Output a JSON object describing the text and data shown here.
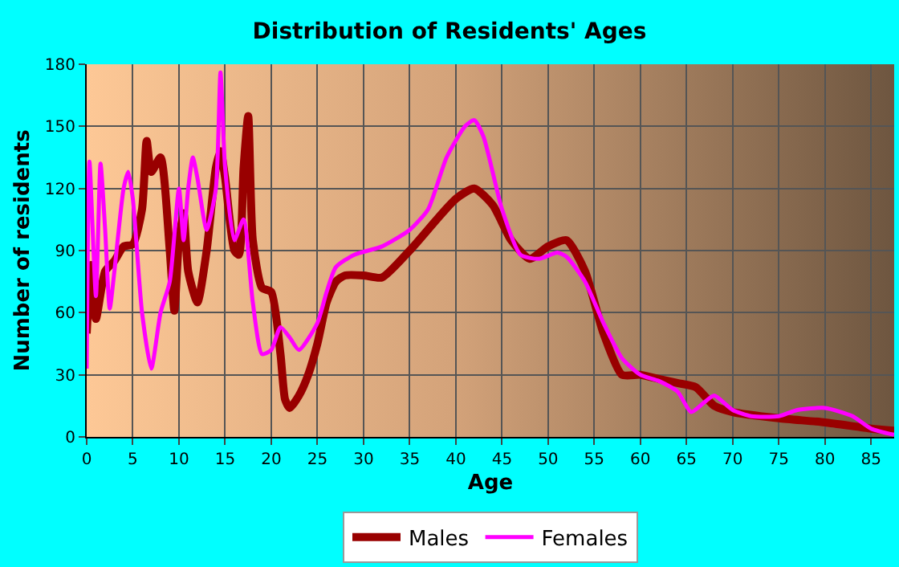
{
  "chart_data": {
    "type": "line",
    "title": "Distribution of Residents' Ages",
    "xlabel": "Age",
    "ylabel": "Number of residents",
    "xlim": [
      0,
      87.5
    ],
    "xticks": [
      0,
      5,
      10,
      15,
      20,
      25,
      30,
      35,
      40,
      45,
      50,
      55,
      60,
      65,
      70,
      75,
      80,
      85
    ],
    "ylim": [
      0,
      180
    ],
    "yticks": [
      0,
      30,
      60,
      90,
      120,
      150,
      180
    ],
    "grid": true,
    "legend": "bottom",
    "series": [
      {
        "name": "Males",
        "color": "#990000",
        "x": [
          0,
          0.5,
          1,
          2,
          3,
          4,
          5,
          6,
          6.5,
          7,
          8,
          9,
          9.5,
          10,
          10.5,
          11,
          12,
          13,
          14,
          14.5,
          15,
          16,
          16.5,
          17,
          17.5,
          18,
          19,
          20,
          21,
          21.5,
          22,
          23,
          24,
          25,
          26,
          27,
          28,
          30,
          32,
          35,
          40,
          42,
          44,
          46,
          48,
          50,
          52,
          54,
          56,
          58,
          60,
          62,
          64,
          66,
          68,
          70,
          75,
          80,
          85,
          87.5
        ],
        "values": [
          50,
          83,
          57,
          80,
          85,
          92,
          93,
          110,
          143,
          128,
          135,
          90,
          61,
          95,
          108,
          80,
          65,
          90,
          130,
          138,
          125,
          90,
          88,
          130,
          155,
          95,
          72,
          70,
          40,
          18,
          14,
          20,
          30,
          45,
          65,
          75,
          78,
          78,
          77,
          90,
          115,
          120,
          112,
          95,
          86,
          92,
          95,
          80,
          50,
          30,
          30,
          28,
          26,
          24,
          15,
          12,
          9,
          7,
          4,
          3
        ]
      },
      {
        "name": "Females",
        "color": "#ff00ff",
        "x": [
          0,
          0.3,
          1,
          1.5,
          2,
          2.5,
          3,
          4,
          4.5,
          5,
          6,
          7,
          8,
          9,
          10,
          10.5,
          11,
          11.5,
          12,
          13,
          14,
          14.5,
          15,
          16,
          17,
          18,
          19,
          20,
          21,
          22,
          23,
          25,
          26,
          27,
          29,
          32,
          35,
          37,
          39,
          41,
          42,
          43,
          45,
          47,
          49,
          51,
          52,
          54,
          56,
          58,
          60,
          62,
          64,
          65.5,
          67,
          68,
          70,
          72,
          75,
          77,
          80,
          83,
          85,
          87.5
        ],
        "values": [
          33,
          133,
          68,
          132,
          100,
          62,
          80,
          120,
          128,
          115,
          60,
          33,
          60,
          75,
          120,
          95,
          120,
          135,
          125,
          100,
          120,
          176,
          130,
          95,
          105,
          65,
          40,
          42,
          53,
          48,
          42,
          55,
          70,
          82,
          88,
          92,
          100,
          110,
          135,
          150,
          153,
          145,
          110,
          88,
          86,
          89,
          87,
          75,
          55,
          38,
          30,
          27,
          22,
          12,
          17,
          20,
          13,
          10,
          10,
          13,
          14,
          10,
          4,
          1
        ]
      }
    ]
  }
}
